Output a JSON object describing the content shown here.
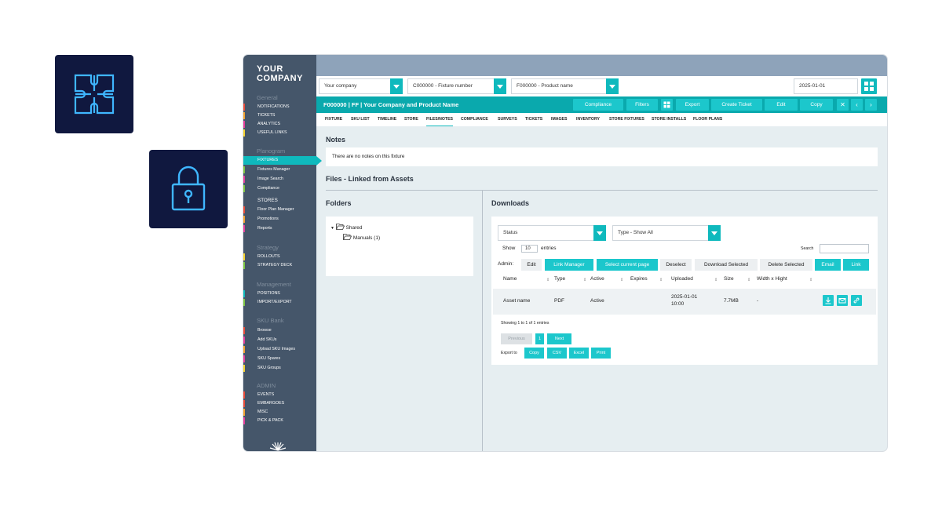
{
  "brand": {
    "line1": "YOUR",
    "line2": "COMPANY"
  },
  "sidebar": {
    "sections": [
      {
        "heading": "General",
        "items": [
          {
            "label": "NOTIFICATIONS",
            "color": "#e84b3a"
          },
          {
            "label": "TICKETS",
            "color": "#f2a22f"
          },
          {
            "label": "ANALYTICS",
            "color": "#e23d9a"
          },
          {
            "label": "USEFUL LINKS",
            "color": "#f4d230"
          }
        ]
      },
      {
        "heading": "Planogram",
        "items": [
          {
            "label": "FIXTURES",
            "color": "#0fb9bd",
            "active": true
          },
          {
            "label": "Fixtures Manager",
            "color": "#7cc442"
          },
          {
            "label": "Image Search",
            "color": "#e23d9a"
          },
          {
            "label": "Compliance",
            "color": "#7cc442"
          }
        ],
        "group": "STORES",
        "group_items": [
          {
            "label": "Floor Plan Manager",
            "color": "#e84b3a"
          },
          {
            "label": "Promotions",
            "color": "#f2a22f"
          },
          {
            "label": "Reports",
            "color": "#e23d9a"
          }
        ]
      },
      {
        "heading": "Strategy",
        "items": [
          {
            "label": "ROLLOUTS",
            "color": "#f4d230"
          },
          {
            "label": "STRATEGY DECK",
            "color": "#7cc442"
          }
        ]
      },
      {
        "heading": "Management",
        "items": [
          {
            "label": "POSITIONS",
            "color": "#0fb9bd"
          },
          {
            "label": "IMPORT/EXPORT",
            "color": "#7cc442"
          }
        ]
      },
      {
        "heading": "SKU Bank",
        "items": [
          {
            "label": "Browse",
            "color": "#e84b3a"
          },
          {
            "label": "Add SKUs",
            "color": "#e23d9a"
          },
          {
            "label": "Upload SKU Images",
            "color": "#f2a22f"
          },
          {
            "label": "SKU Spares",
            "color": "#e23d9a"
          },
          {
            "label": "SKU Groups",
            "color": "#f4d230"
          }
        ]
      },
      {
        "heading": "ADMIN",
        "items": [
          {
            "label": "EVENTS",
            "color": "#e84b3a"
          },
          {
            "label": "EMBARGOES",
            "color": "#e84b3a"
          },
          {
            "label": "MISC",
            "color": "#f2a22f"
          },
          {
            "label": "PICK & PACK",
            "color": "#e23d9a"
          }
        ]
      }
    ]
  },
  "filters": {
    "company": "Your company",
    "fixture": "C000000 - Fixture number",
    "product": "F000000 - Product name",
    "date": "2025-01-01"
  },
  "titlebar": {
    "title": "F000000 | FF | Your Company and Product Name",
    "buttons": {
      "compliance": "Compliance",
      "filters": "Filters",
      "export": "Export",
      "create_ticket": "Create Ticket",
      "edit": "Edit",
      "copy": "Copy"
    },
    "close": "✕",
    "prev": "‹",
    "next": "›"
  },
  "tabs": [
    "FIXTURE",
    "SKU LIST",
    "TIMELINE",
    "STORE",
    "FILES/NOTES",
    "COMPLIANCE",
    "SURVEYS",
    "TICKETS",
    "IMAGES",
    "INVENTORY",
    "STORE FIXTURES",
    "STORE INSTALLS",
    "FLOOR PLANS"
  ],
  "notes": {
    "heading": "Notes",
    "text": "There are no notes on this fixture"
  },
  "files": {
    "heading": "Files - Linked from Assets"
  },
  "folders": {
    "heading": "Folders",
    "root": "Shared",
    "child": "Manuals (1)"
  },
  "downloads": {
    "heading": "Downloads",
    "status_select": "Status",
    "type_select": "Type - Show All",
    "show_label": "Show",
    "show_value": "10",
    "entries_label": "entries",
    "search_label": "Search",
    "admin_label": "Admin:",
    "admin_buttons": {
      "edit": "Edit",
      "link_manager": "Link Manager",
      "select_page": "Select current page",
      "deselect": "Deselect",
      "download_selected": "Download Selected",
      "delete_selected": "Delete Selected",
      "email": "Email",
      "link": "Link"
    },
    "columns": [
      "Name",
      "Type",
      "Active",
      "Expires",
      "Uploaded",
      "Size",
      "Width x Hight"
    ],
    "row": {
      "name": "Asset name",
      "type": "PDF",
      "active": "Active",
      "expires": "",
      "uploaded_date": "2025-01-01",
      "uploaded_time": "10:00",
      "size": "7.7MB",
      "dims": "-"
    },
    "showing": "Showing 1 to 1 of 1 entries",
    "pagination": {
      "previous": "Previous",
      "page": "1",
      "next": "Next"
    },
    "export_label": "Export to",
    "export_buttons": {
      "copy": "Copy",
      "csv": "CSV",
      "excel": "Excel",
      "print": "Print"
    }
  }
}
